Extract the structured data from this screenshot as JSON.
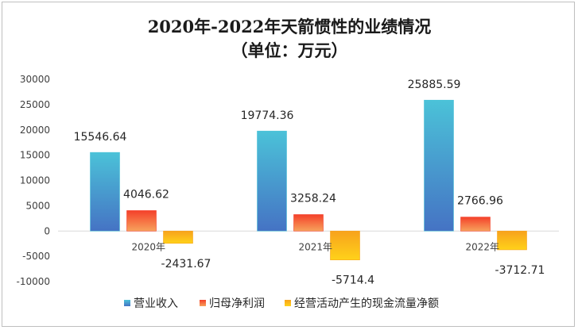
{
  "chart_data": {
    "type": "bar",
    "title": "2020年-2022年天箭惯性的业绩情况",
    "subtitle": "（单位：万元）",
    "categories": [
      "2020年",
      "2021年",
      "2022年"
    ],
    "series": [
      {
        "name": "营业收入",
        "values": [
          15546.64,
          19774.36,
          25885.59
        ],
        "labels": [
          "15546.64",
          "19774.36",
          "25885.59"
        ],
        "color_top": "#4bc2d8",
        "color_bottom": "#4573c4"
      },
      {
        "name": "归母净利润",
        "values": [
          4046.62,
          3258.24,
          2766.96
        ],
        "labels": [
          "4046.62",
          "3258.24",
          "2766.96"
        ],
        "color_top": "#f4402a",
        "color_bottom": "#f7a25c"
      },
      {
        "name": "经营活动产生的现金流量净额",
        "values": [
          -2431.67,
          -5714.4,
          -3712.71
        ],
        "labels": [
          "-2431.67",
          "-5714.4",
          "-3712.71"
        ],
        "color_top": "#f7a21c",
        "color_bottom": "#ffd21a"
      }
    ],
    "ylim": [
      -10000,
      30000
    ],
    "yticks": [
      30000,
      25000,
      20000,
      15000,
      10000,
      5000,
      0,
      -5000,
      -10000
    ],
    "xlabel": "",
    "ylabel": "",
    "grid": false,
    "legend": "bottom"
  }
}
